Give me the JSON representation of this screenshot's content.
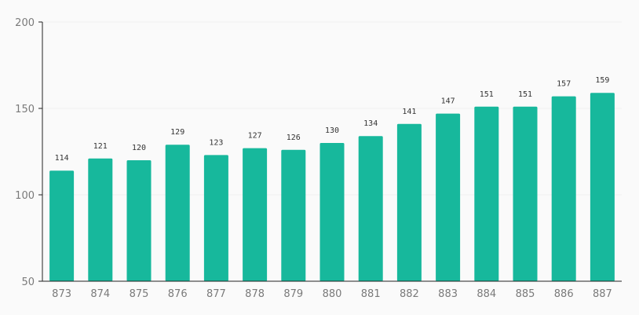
{
  "colors": {
    "bar": "#17b89c",
    "axis": "#222222",
    "grid": "#f0f0f0",
    "background": "#fafafa"
  },
  "chart_data": {
    "type": "bar",
    "title": "",
    "xlabel": "",
    "ylabel": "",
    "categories": [
      "873",
      "874",
      "875",
      "876",
      "877",
      "878",
      "879",
      "880",
      "881",
      "882",
      "883",
      "884",
      "885",
      "886",
      "887"
    ],
    "values": [
      114,
      121,
      120,
      129,
      123,
      127,
      126,
      130,
      134,
      141,
      147,
      151,
      151,
      157,
      159
    ],
    "ylim": [
      50,
      200
    ],
    "yticks": [
      50,
      100,
      150,
      200
    ],
    "grid": true,
    "legend": "none"
  }
}
